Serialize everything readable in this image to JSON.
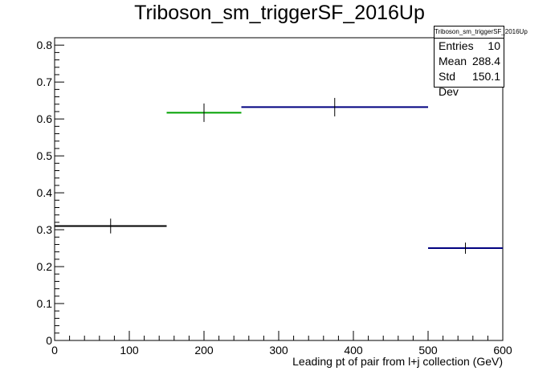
{
  "chart_data": {
    "type": "histogram",
    "title": "Triboson_sm_triggerSF_2016Up",
    "xlabel": "Leading pt of pair from l+j collection (GeV)",
    "ylabel": "",
    "xlim": [
      0,
      600
    ],
    "ylim": [
      0,
      0.82
    ],
    "xticks": [
      0,
      100,
      200,
      300,
      400,
      500,
      600
    ],
    "yticks": [
      0,
      0.1,
      0.2,
      0.3,
      0.4,
      0.5,
      0.6,
      0.7,
      0.8
    ],
    "xtick_labels": [
      "0",
      "100",
      "200",
      "300",
      "400",
      "500",
      "600"
    ],
    "ytick_labels": [
      "0",
      "0.1",
      "0.2",
      "0.3",
      "0.4",
      "0.5",
      "0.6",
      "0.7",
      "0.8"
    ],
    "grid": false,
    "bins": [
      {
        "xlow": 0,
        "xhigh": 150,
        "value": 0.31,
        "error": 0.02,
        "color": "#000000"
      },
      {
        "xlow": 150,
        "xhigh": 250,
        "value": 0.617,
        "error": 0.025,
        "color": "#00a000"
      },
      {
        "xlow": 250,
        "xhigh": 500,
        "value": 0.632,
        "error": 0.025,
        "color": "#000080"
      },
      {
        "xlow": 500,
        "xhigh": 600,
        "value": 0.25,
        "error": 0.015,
        "color": "#000080"
      }
    ],
    "stats": {
      "name": "Triboson_sm_triggerSF_2016Up",
      "entries_label": "Entries",
      "entries": "10",
      "mean_label": "Mean",
      "mean": "288.4",
      "stddev_label": "Std Dev",
      "stddev": "150.1"
    }
  }
}
